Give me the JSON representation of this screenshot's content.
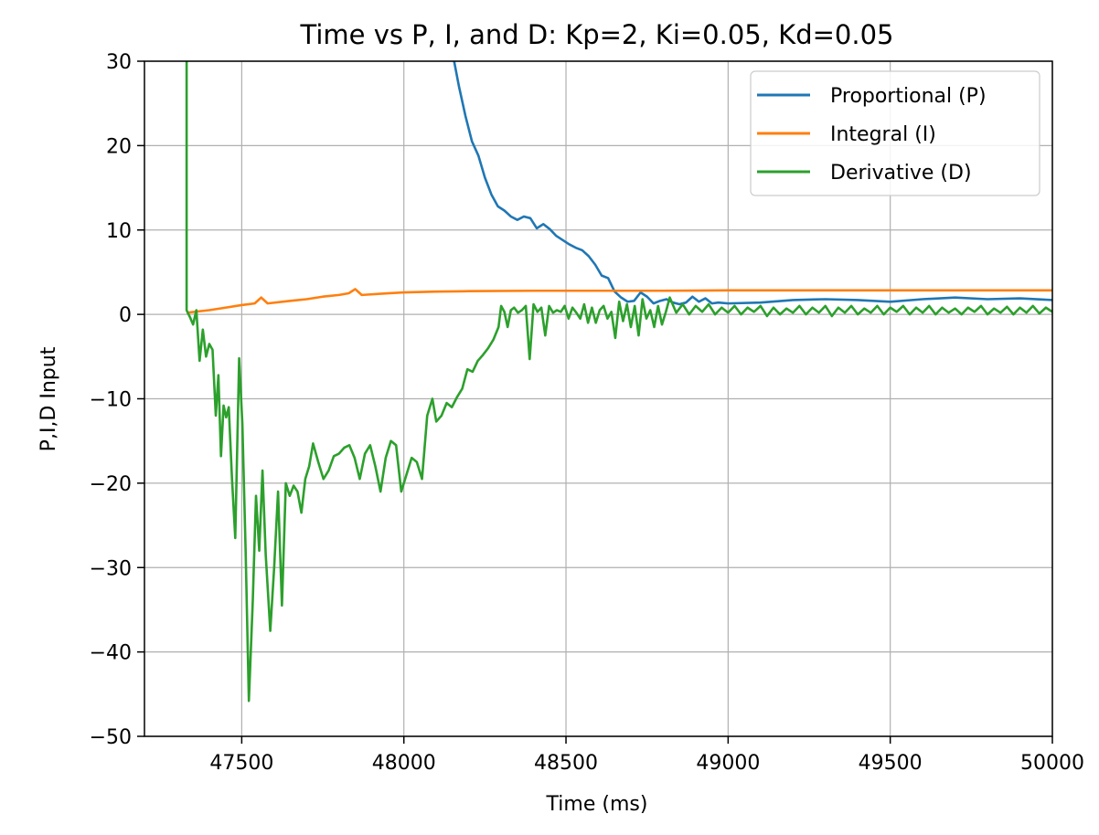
{
  "chart_data": {
    "type": "line",
    "title": "Time vs P, I, and D: Kp=2, Ki=0.05, Kd=0.05",
    "xlabel": "Time (ms)",
    "ylabel": "P,I,D Input",
    "xlim": [
      47200,
      50000
    ],
    "ylim": [
      -50,
      30
    ],
    "xticks": [
      47500,
      48000,
      48500,
      49000,
      49500,
      50000
    ],
    "yticks": [
      -50,
      -40,
      -30,
      -20,
      -10,
      0,
      10,
      20,
      30
    ],
    "xtick_labels": [
      "47500",
      "48000",
      "48500",
      "49000",
      "49500",
      "50000"
    ],
    "ytick_labels": [
      "−50",
      "−40",
      "−30",
      "−20",
      "−10",
      "0",
      "10",
      "20",
      "30"
    ],
    "grid": true,
    "legend_position": "top-right",
    "series": [
      {
        "name": "Proportional (P)",
        "color": "#1f77b4",
        "points": [
          [
            48150,
            31
          ],
          [
            48170,
            27
          ],
          [
            48190,
            23.5
          ],
          [
            48210,
            20.5
          ],
          [
            48230,
            18.8
          ],
          [
            48250,
            16.2
          ],
          [
            48270,
            14.2
          ],
          [
            48290,
            12.8
          ],
          [
            48310,
            12.3
          ],
          [
            48330,
            11.6
          ],
          [
            48350,
            11.2
          ],
          [
            48370,
            11.6
          ],
          [
            48390,
            11.4
          ],
          [
            48410,
            10.2
          ],
          [
            48430,
            10.7
          ],
          [
            48450,
            10.1
          ],
          [
            48470,
            9.3
          ],
          [
            48490,
            8.8
          ],
          [
            48510,
            8.3
          ],
          [
            48530,
            7.9
          ],
          [
            48550,
            7.6
          ],
          [
            48570,
            6.9
          ],
          [
            48590,
            5.9
          ],
          [
            48610,
            4.6
          ],
          [
            48630,
            4.3
          ],
          [
            48650,
            2.7
          ],
          [
            48670,
            2.0
          ],
          [
            48690,
            1.5
          ],
          [
            48710,
            1.6
          ],
          [
            48730,
            2.6
          ],
          [
            48750,
            2.1
          ],
          [
            48770,
            1.3
          ],
          [
            48790,
            1.6
          ],
          [
            48810,
            1.8
          ],
          [
            48830,
            1.4
          ],
          [
            48850,
            1.2
          ],
          [
            48870,
            1.4
          ],
          [
            48890,
            2.1
          ],
          [
            48910,
            1.5
          ],
          [
            48930,
            1.9
          ],
          [
            48950,
            1.3
          ],
          [
            48970,
            1.4
          ],
          [
            49000,
            1.3
          ],
          [
            49100,
            1.4
          ],
          [
            49200,
            1.7
          ],
          [
            49300,
            1.8
          ],
          [
            49400,
            1.7
          ],
          [
            49500,
            1.5
          ],
          [
            49600,
            1.8
          ],
          [
            49700,
            2.0
          ],
          [
            49800,
            1.8
          ],
          [
            49900,
            1.9
          ],
          [
            50000,
            1.7
          ]
        ]
      },
      {
        "name": "Integral (I)",
        "color": "#ff7f0e",
        "points": [
          [
            47330,
            0.2
          ],
          [
            47400,
            0.5
          ],
          [
            47450,
            0.8
          ],
          [
            47500,
            1.1
          ],
          [
            47540,
            1.3
          ],
          [
            47560,
            2.0
          ],
          [
            47580,
            1.3
          ],
          [
            47650,
            1.6
          ],
          [
            47700,
            1.8
          ],
          [
            47750,
            2.1
          ],
          [
            47800,
            2.3
          ],
          [
            47830,
            2.5
          ],
          [
            47850,
            3.0
          ],
          [
            47870,
            2.3
          ],
          [
            47950,
            2.5
          ],
          [
            48000,
            2.6
          ],
          [
            48100,
            2.7
          ],
          [
            48200,
            2.75
          ],
          [
            48400,
            2.8
          ],
          [
            48600,
            2.8
          ],
          [
            48800,
            2.8
          ],
          [
            49000,
            2.85
          ],
          [
            49300,
            2.85
          ],
          [
            49600,
            2.85
          ],
          [
            50000,
            2.85
          ]
        ]
      },
      {
        "name": "Derivative (D)",
        "color": "#2ca02c",
        "points": [
          [
            47330,
            31
          ],
          [
            47330,
            0.5
          ],
          [
            47340,
            -0.3
          ],
          [
            47350,
            -1.2
          ],
          [
            47360,
            0.5
          ],
          [
            47370,
            -5.5
          ],
          [
            47380,
            -1.8
          ],
          [
            47390,
            -5.0
          ],
          [
            47400,
            -3.5
          ],
          [
            47410,
            -4.2
          ],
          [
            47420,
            -12.0
          ],
          [
            47428,
            -7.2
          ],
          [
            47436,
            -16.8
          ],
          [
            47444,
            -10.8
          ],
          [
            47452,
            -12.2
          ],
          [
            47460,
            -11.0
          ],
          [
            47470,
            -19.5
          ],
          [
            47480,
            -26.5
          ],
          [
            47492,
            -5.2
          ],
          [
            47502,
            -13.0
          ],
          [
            47512,
            -28.0
          ],
          [
            47522,
            -45.8
          ],
          [
            47534,
            -34.0
          ],
          [
            47544,
            -21.5
          ],
          [
            47554,
            -28.0
          ],
          [
            47564,
            -18.5
          ],
          [
            47574,
            -28.5
          ],
          [
            47588,
            -37.5
          ],
          [
            47600,
            -30.0
          ],
          [
            47612,
            -21.0
          ],
          [
            47624,
            -34.5
          ],
          [
            47636,
            -20.0
          ],
          [
            47648,
            -21.5
          ],
          [
            47660,
            -20.3
          ],
          [
            47672,
            -21.0
          ],
          [
            47684,
            -23.5
          ],
          [
            47696,
            -19.5
          ],
          [
            47708,
            -18.0
          ],
          [
            47720,
            -15.3
          ],
          [
            47736,
            -17.5
          ],
          [
            47752,
            -19.5
          ],
          [
            47768,
            -18.5
          ],
          [
            47784,
            -16.8
          ],
          [
            47800,
            -16.5
          ],
          [
            47816,
            -15.8
          ],
          [
            47832,
            -15.5
          ],
          [
            47848,
            -17.0
          ],
          [
            47864,
            -19.5
          ],
          [
            47880,
            -16.5
          ],
          [
            47896,
            -15.5
          ],
          [
            47912,
            -18.0
          ],
          [
            47928,
            -21.0
          ],
          [
            47944,
            -17.0
          ],
          [
            47960,
            -15.0
          ],
          [
            47976,
            -15.5
          ],
          [
            47992,
            -21.0
          ],
          [
            48008,
            -19.0
          ],
          [
            48024,
            -17.0
          ],
          [
            48040,
            -17.5
          ],
          [
            48056,
            -19.5
          ],
          [
            48072,
            -12.0
          ],
          [
            48088,
            -10.0
          ],
          [
            48100,
            -12.7
          ],
          [
            48116,
            -12.0
          ],
          [
            48132,
            -10.5
          ],
          [
            48148,
            -11.0
          ],
          [
            48164,
            -9.8
          ],
          [
            48180,
            -8.8
          ],
          [
            48196,
            -6.5
          ],
          [
            48212,
            -6.8
          ],
          [
            48228,
            -5.5
          ],
          [
            48244,
            -4.8
          ],
          [
            48260,
            -4.0
          ],
          [
            48276,
            -3.0
          ],
          [
            48292,
            -1.5
          ],
          [
            48300,
            1.0
          ],
          [
            48310,
            0.3
          ],
          [
            48320,
            -1.5
          ],
          [
            48330,
            0.5
          ],
          [
            48340,
            0.8
          ],
          [
            48352,
            0.2
          ],
          [
            48364,
            0.5
          ],
          [
            48376,
            1.0
          ],
          [
            48388,
            -5.3
          ],
          [
            48400,
            1.2
          ],
          [
            48412,
            0.3
          ],
          [
            48424,
            0.8
          ],
          [
            48436,
            -2.5
          ],
          [
            48448,
            1.0
          ],
          [
            48460,
            0.2
          ],
          [
            48472,
            0.5
          ],
          [
            48484,
            0.3
          ],
          [
            48496,
            1.0
          ],
          [
            48508,
            -0.5
          ],
          [
            48520,
            0.8
          ],
          [
            48532,
            0.2
          ],
          [
            48544,
            -0.5
          ],
          [
            48556,
            1.2
          ],
          [
            48568,
            -1.0
          ],
          [
            48580,
            0.8
          ],
          [
            48592,
            -1.0
          ],
          [
            48604,
            0.5
          ],
          [
            48616,
            1.0
          ],
          [
            48628,
            -0.5
          ],
          [
            48640,
            0.3
          ],
          [
            48652,
            -2.8
          ],
          [
            48664,
            1.5
          ],
          [
            48676,
            -0.8
          ],
          [
            48688,
            1.2
          ],
          [
            48700,
            -1.5
          ],
          [
            48712,
            1.0
          ],
          [
            48724,
            -2.5
          ],
          [
            48736,
            1.8
          ],
          [
            48748,
            -0.5
          ],
          [
            48760,
            0.5
          ],
          [
            48772,
            -1.5
          ],
          [
            48784,
            1.0
          ],
          [
            48796,
            -1.2
          ],
          [
            48808,
            0.3
          ],
          [
            48820,
            2.0
          ],
          [
            48840,
            0.2
          ],
          [
            48860,
            1.2
          ],
          [
            48880,
            0.0
          ],
          [
            48900,
            1.0
          ],
          [
            48920,
            0.3
          ],
          [
            48940,
            1.2
          ],
          [
            48960,
            0.0
          ],
          [
            48980,
            0.8
          ],
          [
            49000,
            0.2
          ],
          [
            49020,
            1.0
          ],
          [
            49040,
            0.0
          ],
          [
            49060,
            0.8
          ],
          [
            49080,
            0.3
          ],
          [
            49100,
            1.0
          ],
          [
            49120,
            -0.2
          ],
          [
            49140,
            0.8
          ],
          [
            49160,
            0.0
          ],
          [
            49180,
            0.7
          ],
          [
            49200,
            0.2
          ],
          [
            49220,
            1.0
          ],
          [
            49240,
            0.0
          ],
          [
            49260,
            0.8
          ],
          [
            49280,
            0.2
          ],
          [
            49300,
            1.0
          ],
          [
            49320,
            -0.2
          ],
          [
            49340,
            0.8
          ],
          [
            49360,
            0.2
          ],
          [
            49380,
            1.0
          ],
          [
            49400,
            0.0
          ],
          [
            49420,
            0.7
          ],
          [
            49440,
            0.2
          ],
          [
            49460,
            1.0
          ],
          [
            49480,
            0.0
          ],
          [
            49500,
            0.8
          ],
          [
            49520,
            0.3
          ],
          [
            49540,
            1.0
          ],
          [
            49560,
            0.0
          ],
          [
            49580,
            0.8
          ],
          [
            49600,
            0.2
          ],
          [
            49620,
            1.0
          ],
          [
            49640,
            0.0
          ],
          [
            49660,
            0.8
          ],
          [
            49680,
            0.2
          ],
          [
            49700,
            0.7
          ],
          [
            49720,
            0.0
          ],
          [
            49740,
            0.8
          ],
          [
            49760,
            0.3
          ],
          [
            49780,
            1.0
          ],
          [
            49800,
            0.0
          ],
          [
            49820,
            0.7
          ],
          [
            49840,
            0.2
          ],
          [
            49860,
            0.9
          ],
          [
            49880,
            0.0
          ],
          [
            49900,
            0.8
          ],
          [
            49920,
            0.2
          ],
          [
            49940,
            1.0
          ],
          [
            49960,
            0.1
          ],
          [
            49980,
            0.8
          ],
          [
            50000,
            0.3
          ]
        ]
      }
    ]
  }
}
